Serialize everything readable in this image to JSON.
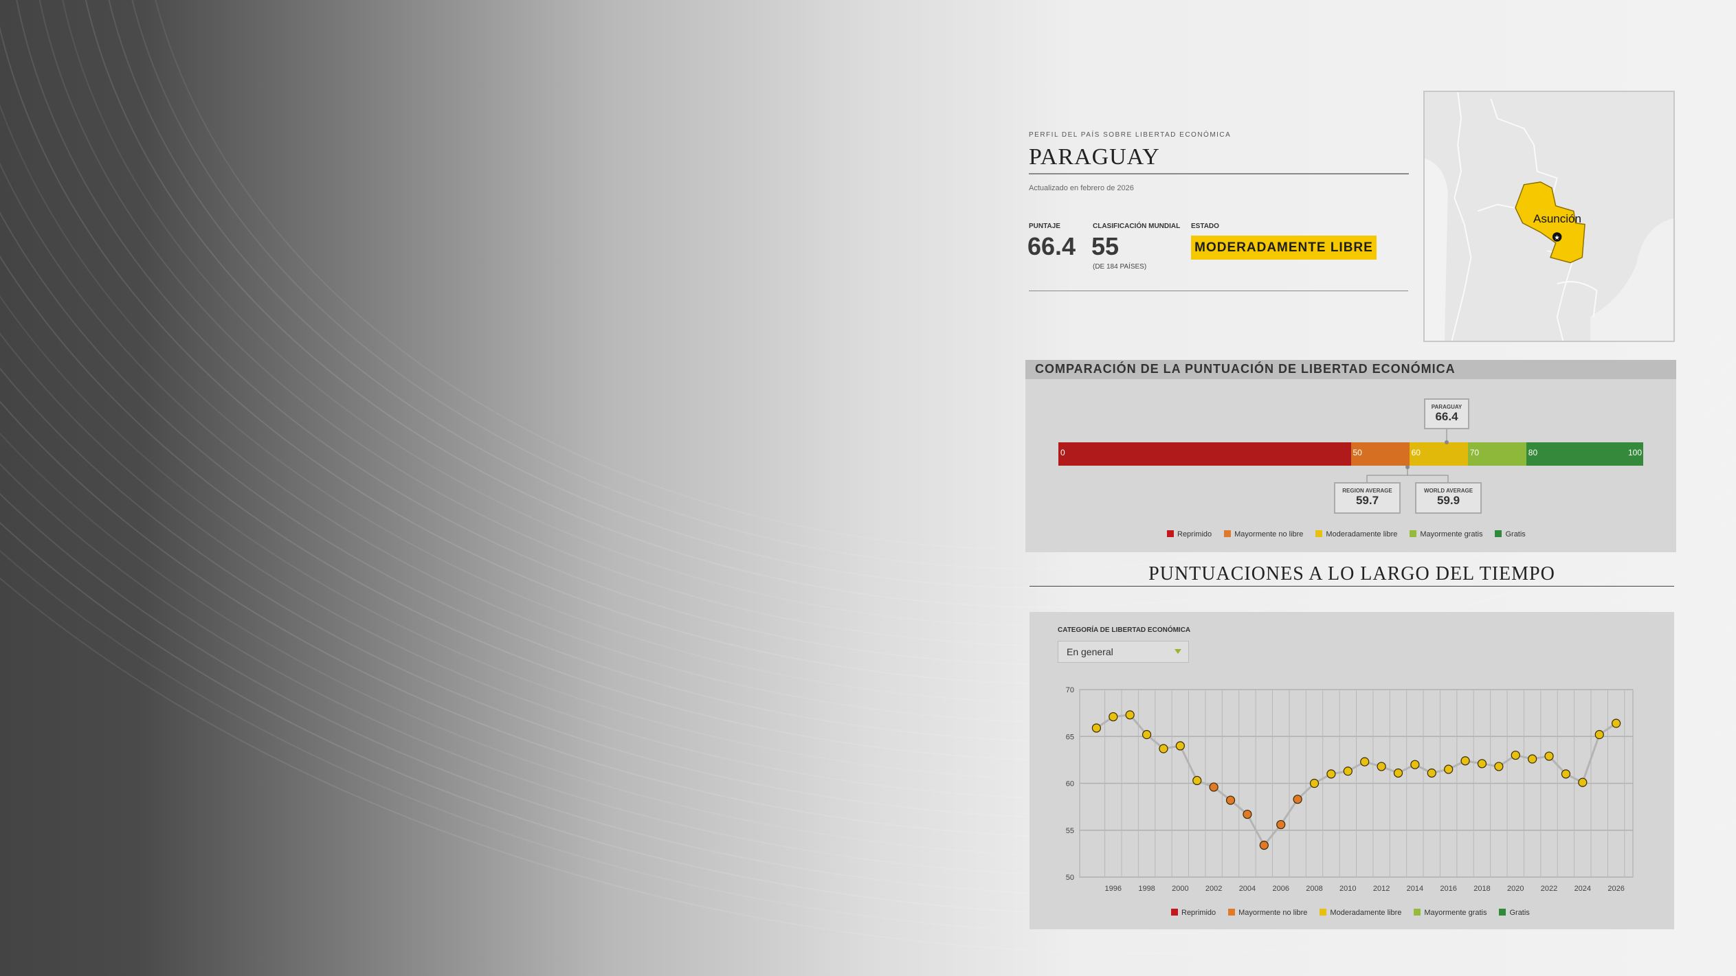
{
  "header": {
    "kicker": "PERFIL DEL PAÍS SOBRE LIBERTAD ECONÓMICA",
    "country": "PARAGUAY",
    "updated": "Actualizado en febrero de 2026",
    "score_label": "PUNTAJE",
    "score": "66.4",
    "rank_label": "CLASIFICACIÓN MUNDIAL",
    "rank": "55",
    "rank_note": "(DE 184 PAÍSES)",
    "status_label": "ESTADO",
    "status": "MODERADAMENTE LIBRE",
    "status_color": "#f5c800"
  },
  "map": {
    "capital": "Asunción",
    "highlight_color": "#f5c800"
  },
  "comparison": {
    "title": "COMPARACIÓN DE LA PUNTUACIÓN DE LIBERTAD ECONÓMICA",
    "scale": [
      {
        "from": 0,
        "to": 50,
        "label": "0",
        "color": "#b01a1a"
      },
      {
        "from": 50,
        "to": 60,
        "label": "50",
        "color": "#d76f22"
      },
      {
        "from": 60,
        "to": 70,
        "label": "60",
        "color": "#e0b90a"
      },
      {
        "from": 70,
        "to": 80,
        "label": "70",
        "color": "#8db83a"
      },
      {
        "from": 80,
        "to": 100,
        "label": "80",
        "color": "#34893a"
      }
    ],
    "end_label": "100",
    "country": {
      "label": "PARAGUAY",
      "value": "66.4"
    },
    "region": {
      "label": "REGION AVERAGE",
      "value": "59.7"
    },
    "world": {
      "label": "WORLD AVERAGE",
      "value": "59.9"
    }
  },
  "legend": [
    {
      "label": "Reprimido",
      "color": "#c0181c"
    },
    {
      "label": "Mayormente no libre",
      "color": "#e07a2a"
    },
    {
      "label": "Moderadamente libre",
      "color": "#e8c010"
    },
    {
      "label": "Mayormente gratis",
      "color": "#94bb3a"
    },
    {
      "label": "Gratis",
      "color": "#2f8a3a"
    }
  ],
  "timeline": {
    "title": "PUNTUACIONES A LO LARGO DEL TIEMPO",
    "category_label": "CATEGORÍA DE LIBERTAD ECONÓMICA",
    "dropdown_value": "En general"
  },
  "chart_data": {
    "type": "line",
    "ylim": [
      50,
      70
    ],
    "yticks": [
      50,
      55,
      60,
      65,
      70
    ],
    "xticks": [
      1996,
      1998,
      2000,
      2002,
      2004,
      2006,
      2008,
      2010,
      2012,
      2014,
      2016,
      2018,
      2020,
      2022,
      2024,
      2026
    ],
    "grid": true,
    "x": [
      1995,
      1996,
      1997,
      1998,
      1999,
      2000,
      2001,
      2002,
      2003,
      2004,
      2005,
      2006,
      2007,
      2008,
      2009,
      2010,
      2011,
      2012,
      2013,
      2014,
      2015,
      2016,
      2017,
      2018,
      2019,
      2020,
      2021,
      2022,
      2023,
      2024,
      2025,
      2026
    ],
    "y": [
      65.9,
      67.1,
      67.3,
      65.2,
      63.7,
      64.0,
      60.3,
      59.6,
      58.2,
      56.7,
      53.4,
      55.6,
      58.3,
      60.0,
      61.0,
      61.3,
      62.3,
      61.8,
      61.1,
      62.0,
      61.1,
      61.5,
      62.4,
      62.1,
      61.8,
      63.0,
      62.6,
      62.9,
      61.0,
      60.1,
      65.2,
      66.4
    ]
  }
}
